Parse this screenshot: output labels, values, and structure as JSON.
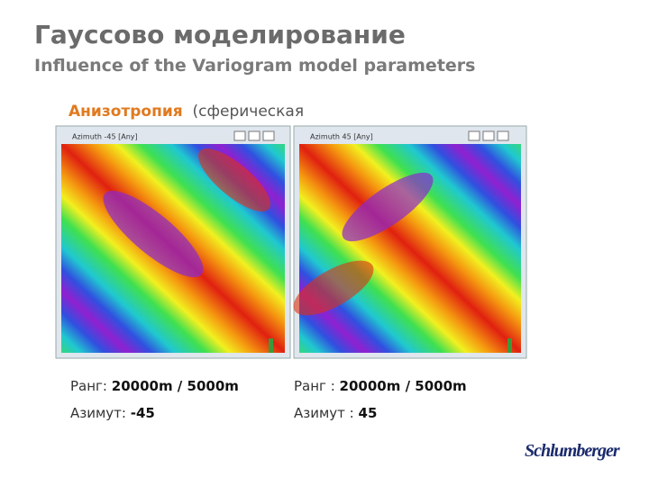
{
  "header": {
    "title": "Гауссово моделирование",
    "subtitle": "Influence of the Variogram model parameters"
  },
  "section": {
    "heading": "Анизотропия",
    "heading_rest": "(сферическая"
  },
  "panels": [
    {
      "window_title": "Azimuth -45 [Any]",
      "range_label": "Ранг:",
      "range_value": "20000m / 5000m",
      "azimuth_label": "Азимут:",
      "azimuth_value": "-45"
    },
    {
      "window_title": "Azimuth 45 [Any]",
      "range_label": "Ранг :",
      "range_value": "20000m / 5000m",
      "azimuth_label": "Азимут :",
      "azimuth_value": "45"
    }
  ],
  "logo": "Schlumberger"
}
